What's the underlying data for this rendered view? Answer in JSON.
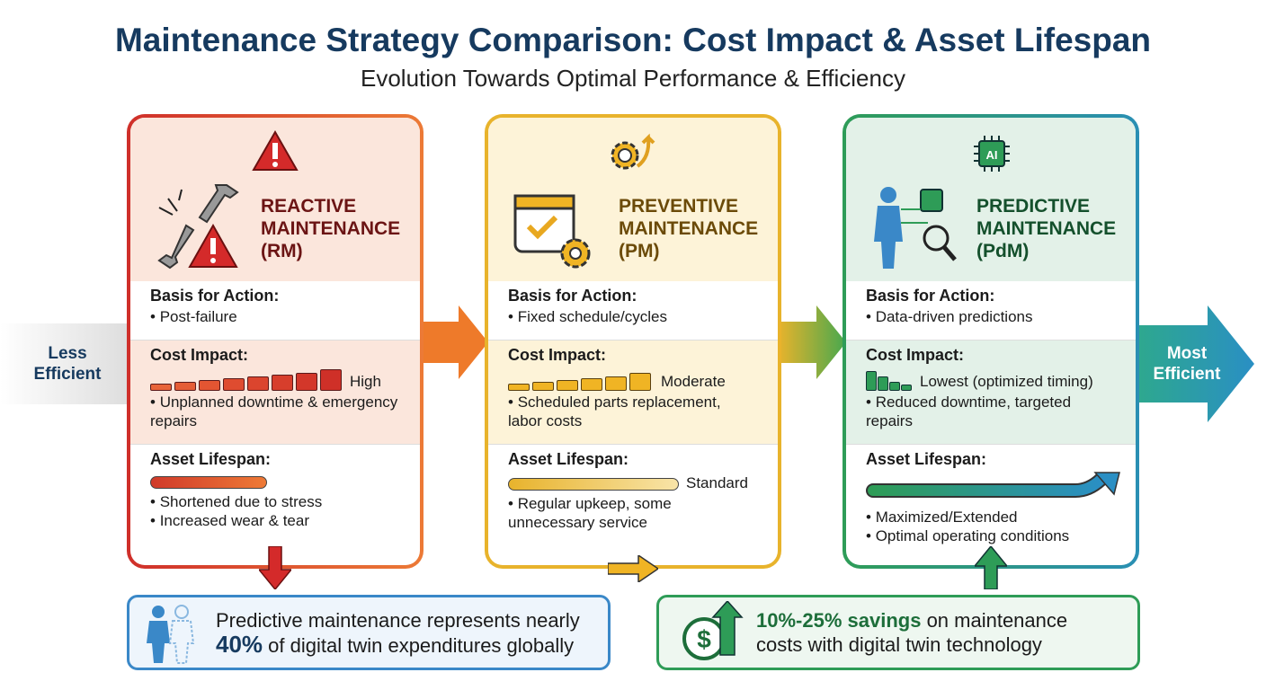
{
  "header": {
    "title": "Maintenance Strategy Comparison: Cost Impact & Asset Lifespan",
    "subtitle": "Evolution Towards Optimal Performance & Efficiency"
  },
  "scale": {
    "left_label": "Less Efficient",
    "right_label": "Most Efficient"
  },
  "colors": {
    "reactive": "#d43a2c",
    "preventive": "#e8b32c",
    "predictive": "#2e9c57",
    "navy": "#163a5f",
    "right_arrow": "#2a8fc4"
  },
  "cards": [
    {
      "name": "REACTIVE MAINTENANCE (RM)",
      "icon": "broken-wrench-warning-icon",
      "basis_label": "Basis for Action:",
      "basis": "Post-failure",
      "cost_label": "Cost Impact:",
      "cost_level": "High",
      "cost_notes": "Unplanned downtime & emergency repairs",
      "life_label": "Asset Lifespan:",
      "life_notes": [
        "Shortened due to stress",
        "Increased wear & tear"
      ]
    },
    {
      "name": "PREVENTIVE MAINTENANCE (PM)",
      "icon": "calendar-gear-icon",
      "basis_label": "Basis for Action:",
      "basis": "Fixed schedule/cycles",
      "cost_label": "Cost Impact:",
      "cost_level": "Moderate",
      "cost_notes": "Scheduled parts replacement, labor costs",
      "life_label": "Asset Lifespan:",
      "life_level": "Standard",
      "life_notes": [
        "Regular upkeep, some unnecessary service"
      ]
    },
    {
      "name": "PREDICTIVE MAINTENANCE (PdM)",
      "icon": "ai-digital-twin-icon",
      "basis_label": "Basis for Action:",
      "basis": "Data-driven predictions",
      "cost_label": "Cost Impact:",
      "cost_level": "Lowest (optimized timing)",
      "cost_notes": "Reduced downtime, targeted repairs",
      "life_label": "Asset Lifespan:",
      "life_notes": [
        "Maximized/Extended",
        "Optimal operating conditions"
      ]
    }
  ],
  "callouts": [
    {
      "text": "Predictive maintenance represents nearly",
      "highlight": "40%",
      "text2": "of digital twin expenditures globally"
    },
    {
      "highlight": "10%-25% savings",
      "text": "on maintenance",
      "text2": "costs with digital twin technology"
    }
  ]
}
